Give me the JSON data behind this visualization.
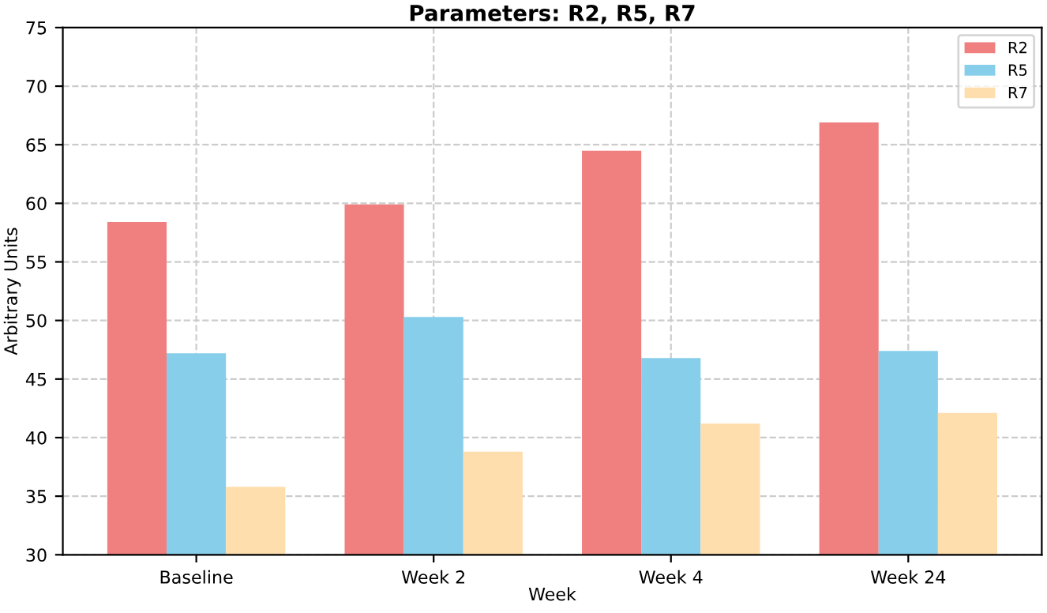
{
  "chart_data": {
    "type": "bar",
    "title": "Parameters: R2, R5, R7",
    "xlabel": "Week",
    "ylabel": "Arbitrary Units",
    "categories": [
      "Baseline",
      "Week 2",
      "Week 4",
      "Week 24"
    ],
    "series": [
      {
        "name": "R2",
        "color": "#f08080",
        "values": [
          58.4,
          59.9,
          64.5,
          66.9
        ]
      },
      {
        "name": "R5",
        "color": "#87ceeb",
        "values": [
          47.2,
          50.3,
          46.8,
          47.4
        ]
      },
      {
        "name": "R7",
        "color": "#ffdead",
        "values": [
          35.8,
          38.8,
          41.2,
          42.1
        ]
      }
    ],
    "ylim": [
      30,
      75
    ],
    "yticks": [
      30,
      35,
      40,
      45,
      50,
      55,
      60,
      65,
      70,
      75
    ],
    "grid": true,
    "legend": "top right"
  }
}
